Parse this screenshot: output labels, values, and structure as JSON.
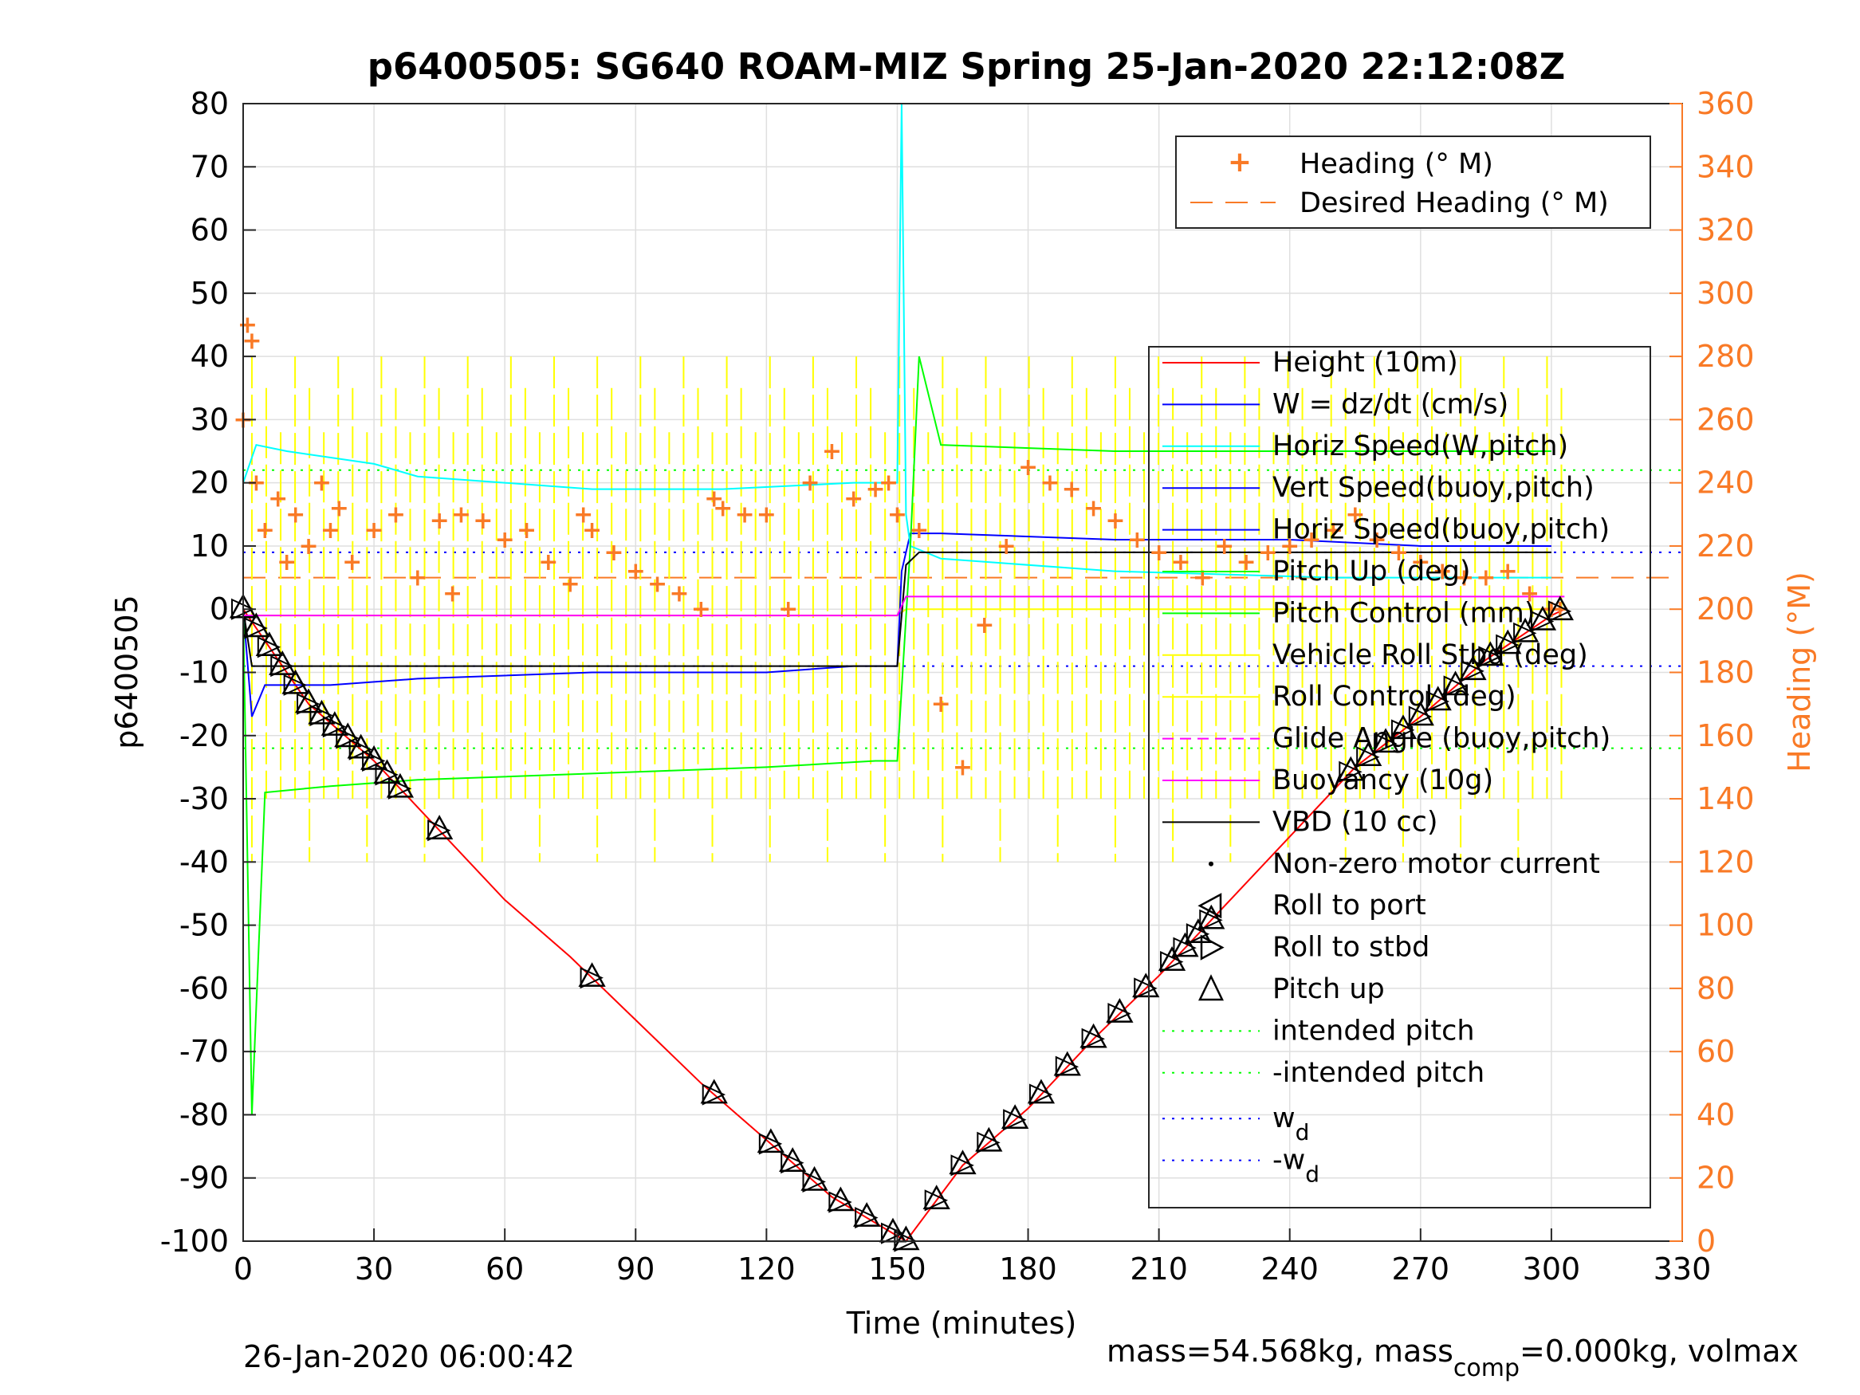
{
  "chart_data": {
    "type": "line",
    "title": "p6400505: SG640 ROAM-MIZ Spring 25-Jan-2020 22:12:08Z",
    "xlabel": "Time (minutes)",
    "ylabel": "p6400505",
    "y2label": "Heading (°M)",
    "xlim": [
      0,
      330
    ],
    "ylim": [
      -100,
      80
    ],
    "y2lim": [
      0,
      360
    ],
    "xticks": [
      "0",
      "30",
      "60",
      "90",
      "120",
      "150",
      "180",
      "210",
      "240",
      "270",
      "300",
      "330"
    ],
    "yticks": [
      "80",
      "70",
      "60",
      "50",
      "40",
      "30",
      "20",
      "10",
      "0",
      "-10",
      "-20",
      "-30",
      "-40",
      "-50",
      "-60",
      "-70",
      "-80",
      "-90",
      "-100"
    ],
    "y2ticks": [
      "360",
      "340",
      "320",
      "300",
      "280",
      "260",
      "240",
      "220",
      "200",
      "180",
      "160",
      "140",
      "120",
      "100",
      "80",
      "60",
      "40",
      "20",
      "0"
    ],
    "grid": true,
    "legend_top": [
      "Heading (° M)",
      "Desired Heading (° M)"
    ],
    "legend_main": [
      "Height (10m)",
      "W = dz/dt (cm/s)",
      "Horiz Speed(W,pitch)",
      "Vert Speed(buoy,pitch)",
      "Horiz Speed(buoy,pitch)",
      "Pitch Up (deg)",
      "Pitch Control (mm)",
      "Vehicle Roll Stbd (deg)",
      "Roll Control (deg)",
      "Glide Angle (buoy,pitch)",
      "Buoyancy (10g)",
      "VBD (10 cc)",
      "Non-zero motor current",
      "Roll to port",
      "Roll to stbd",
      "Pitch up",
      "intended pitch",
      "-intended pitch"
    ],
    "legend_wd": "w",
    "legend_wd_neg": "-w",
    "legend_wd_sub": "d",
    "colors": {
      "height": "#ff0000",
      "w": "#0000ff",
      "horiz": "#00ffff",
      "pitch": "#00ff00",
      "roll": "#ffff00",
      "glide": "#ff00ff",
      "vbd": "#000000",
      "heading": "#f97a26",
      "intended": "#00ff00",
      "wd": "#0000ff"
    },
    "series": [
      {
        "name": "Height (10m)",
        "x": [
          0,
          15,
          30,
          45,
          60,
          75,
          90,
          105,
          120,
          135,
          152,
          165,
          180,
          195,
          210,
          225,
          240,
          255,
          270,
          285,
          300,
          303
        ],
        "y": [
          0,
          -15,
          -24,
          -35,
          -46,
          -55,
          -65,
          -75,
          -84,
          -93,
          -100,
          -88,
          -79,
          -68,
          -58,
          -47,
          -36,
          -25,
          -17,
          -8,
          -1,
          0
        ]
      },
      {
        "name": "W = dz/dt (cm/s)",
        "x": [
          0,
          2,
          5,
          20,
          40,
          80,
          120,
          140,
          150,
          151,
          153,
          160,
          200,
          240,
          270,
          300
        ],
        "y": [
          0,
          -17,
          -12,
          -12,
          -11,
          -10,
          -10,
          -9,
          -9,
          6,
          12,
          12,
          11,
          11,
          10,
          10
        ]
      },
      {
        "name": "Horiz Speed(W,pitch)",
        "x": [
          0,
          3,
          10,
          30,
          40,
          80,
          110,
          140,
          150,
          151,
          152,
          153,
          160,
          200,
          250,
          300
        ],
        "y": [
          20,
          26,
          25,
          23,
          21,
          19,
          19,
          20,
          20,
          80,
          15,
          10,
          8,
          6,
          5,
          5
        ]
      },
      {
        "name": "Pitch Up (deg)",
        "x": [
          0,
          2,
          5,
          20,
          40,
          80,
          120,
          145,
          150,
          153,
          155,
          160,
          200,
          250,
          300
        ],
        "y": [
          0,
          -80,
          -29,
          -28,
          -27,
          -26,
          -25,
          -24,
          -24,
          10,
          40,
          26,
          25,
          25,
          25
        ]
      },
      {
        "name": "VBD (10 cc)",
        "x": [
          0,
          2,
          150,
          152,
          155,
          250,
          300
        ],
        "y": [
          0,
          -9,
          -9,
          7,
          9,
          9,
          9
        ]
      },
      {
        "name": "Glide Angle (buoy,pitch)",
        "x": [
          0,
          150,
          152,
          303
        ],
        "y": [
          -1,
          -1,
          2,
          2
        ]
      }
    ],
    "heading_series": {
      "x": [
        0,
        1,
        2,
        3,
        5,
        8,
        10,
        12,
        15,
        18,
        20,
        22,
        25,
        30,
        35,
        40,
        45,
        48,
        50,
        55,
        60,
        65,
        70,
        75,
        78,
        80,
        85,
        90,
        95,
        100,
        105,
        108,
        110,
        115,
        120,
        125,
        130,
        135,
        140,
        145,
        148,
        150,
        155,
        160,
        165,
        170,
        175,
        180,
        185,
        190,
        195,
        200,
        205,
        210,
        215,
        220,
        225,
        230,
        235,
        240,
        245,
        250,
        255,
        260,
        265,
        270,
        275,
        280,
        285,
        290,
        295,
        300,
        302
      ],
      "y": [
        260,
        290,
        285,
        240,
        225,
        235,
        215,
        230,
        220,
        240,
        225,
        232,
        215,
        225,
        230,
        210,
        228,
        205,
        230,
        228,
        222,
        225,
        215,
        208,
        230,
        225,
        218,
        212,
        208,
        205,
        200,
        235,
        232,
        230,
        230,
        200,
        240,
        250,
        235,
        238,
        240,
        230,
        225,
        170,
        150,
        195,
        220,
        245,
        240,
        238,
        232,
        228,
        222,
        218,
        215,
        210,
        220,
        215,
        218,
        220,
        222,
        225,
        230,
        222,
        218,
        215,
        212,
        210,
        210,
        212,
        205,
        200,
        200
      ]
    },
    "desired_heading": {
      "y": 210
    },
    "intended_pitch": [
      22,
      -22
    ],
    "wd": [
      9,
      -9
    ]
  },
  "footer": {
    "date": "26-Jan-2020 06:00:42",
    "mass_text": "mass=54.568kg, mass",
    "mass_sub": "comp",
    "mass_tail": "=0.000kg, volmax"
  }
}
